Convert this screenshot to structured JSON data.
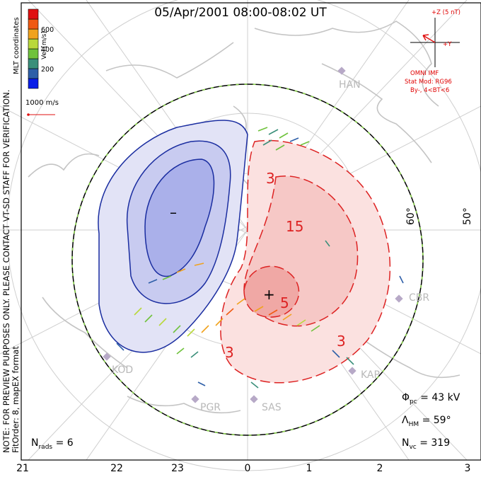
{
  "title": "05/Apr/2001 08:00-08:02 UT",
  "side_note": {
    "line1": "NOTE: FOR PREVIEW PURPOSES ONLY. PLEASE CONTACT VT-SD STAFF FOR VERIFICATION.",
    "line2": "FitOrder: 8, mapEX format"
  },
  "coordinates_label": "MLT coordinates",
  "colorbar": {
    "title": "Vel [m/s]",
    "ticks": [
      "200",
      "400",
      "600"
    ],
    "colors": [
      "#0a1ee8",
      "#2e5fa8",
      "#3a8f7a",
      "#6fc23c",
      "#b9d83a",
      "#f0a21d",
      "#f05a12",
      "#e01010"
    ]
  },
  "reference_vector": "1000 m/s",
  "imf": {
    "z_label": "+Z (5 nT)",
    "y_label": "+Y",
    "source": "OMNI IMF",
    "model": "Stat Mod: RG96",
    "condition": "By-, 4<BT<6"
  },
  "contour_labels": [
    "3",
    "15",
    "5",
    "3",
    "3"
  ],
  "markers": {
    "minus": "–",
    "plus": "+"
  },
  "stations": [
    "HAN",
    "CBR",
    "KAP",
    "SAS",
    "PGR",
    "KOD"
  ],
  "latitudes": [
    "60°",
    "50°"
  ],
  "stats": {
    "nrads_label": "N",
    "nrads_sub": "rads",
    "nrads_value": "= 6",
    "phi_label": "Φ",
    "phi_sub": "pc",
    "phi_value": "= 43 kV",
    "lambda_label": "Λ",
    "lambda_sub": "HM",
    "lambda_value": "= 59°",
    "nvc_label": "N",
    "nvc_sub": "vc",
    "nvc_value": "= 319"
  },
  "mlt_ticks": [
    "21",
    "22",
    "23",
    "0",
    "1",
    "2",
    "3"
  ]
}
